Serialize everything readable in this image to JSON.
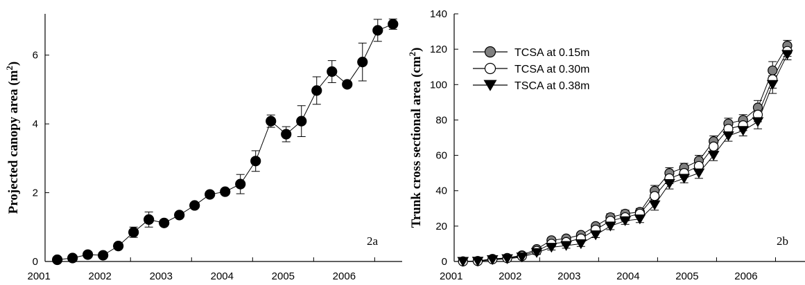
{
  "chart_data": [
    {
      "type": "line",
      "panel_label": "2a",
      "ylabel": "Projected canopy area (m",
      "ylabel_sup": "2",
      "ylabel_close": ")",
      "x_ticks": [
        "2001",
        "2002",
        "2003",
        "2004",
        "2005",
        "2006"
      ],
      "ylim": [
        0,
        7.2
      ],
      "y_ticks": [
        "0",
        "2",
        "4",
        "6"
      ],
      "grid": false,
      "series": [
        {
          "color": "#000000",
          "marker": "circle-filled",
          "points": [
            {
              "x": 2000.8,
              "y": 0.05,
              "err": 0
            },
            {
              "x": 2001.05,
              "y": 0.1,
              "err": 0
            },
            {
              "x": 2001.3,
              "y": 0.2,
              "err": 0
            },
            {
              "x": 2001.55,
              "y": 0.18,
              "err": 0
            },
            {
              "x": 2001.8,
              "y": 0.45,
              "err": 0.05
            },
            {
              "x": 2002.05,
              "y": 0.85,
              "err": 0.15
            },
            {
              "x": 2002.3,
              "y": 1.22,
              "err": 0.22
            },
            {
              "x": 2002.55,
              "y": 1.12,
              "err": 0.05
            },
            {
              "x": 2002.8,
              "y": 1.35,
              "err": 0.05
            },
            {
              "x": 2003.05,
              "y": 1.63,
              "err": 0.05
            },
            {
              "x": 2003.3,
              "y": 1.95,
              "err": 0.05
            },
            {
              "x": 2003.55,
              "y": 2.03,
              "err": 0.05
            },
            {
              "x": 2003.8,
              "y": 2.25,
              "err": 0.28
            },
            {
              "x": 2004.05,
              "y": 2.92,
              "err": 0.3
            },
            {
              "x": 2004.3,
              "y": 4.08,
              "err": 0.18
            },
            {
              "x": 2004.55,
              "y": 3.7,
              "err": 0.22
            },
            {
              "x": 2004.8,
              "y": 4.08,
              "err": 0.45
            },
            {
              "x": 2005.05,
              "y": 4.97,
              "err": 0.4
            },
            {
              "x": 2005.3,
              "y": 5.52,
              "err": 0.32
            },
            {
              "x": 2005.55,
              "y": 5.15,
              "err": 0.08
            },
            {
              "x": 2005.8,
              "y": 5.8,
              "err": 0.55
            },
            {
              "x": 2006.05,
              "y": 6.72,
              "err": 0.32
            },
            {
              "x": 2006.3,
              "y": 6.9,
              "err": 0.15
            }
          ]
        }
      ]
    },
    {
      "type": "line",
      "panel_label": "2b",
      "ylabel": "Trunk cross sectional area (cm",
      "ylabel_sup": "2",
      "ylabel_close": ")",
      "x_ticks": [
        "2001",
        "2002",
        "2003",
        "2004",
        "2005",
        "2006"
      ],
      "ylim": [
        0,
        140
      ],
      "y_ticks": [
        "0",
        "20",
        "40",
        "60",
        "80",
        "100",
        "120",
        "140"
      ],
      "grid": false,
      "legend_position": "top-left",
      "x": [
        2000.7,
        2000.95,
        2001.2,
        2001.45,
        2001.7,
        2001.95,
        2002.2,
        2002.45,
        2002.7,
        2002.95,
        2003.2,
        2003.45,
        2003.7,
        2003.95,
        2004.2,
        2004.45,
        2004.7,
        2004.95,
        2005.2,
        2005.45,
        2005.7,
        2005.95,
        2006.2
      ],
      "series": [
        {
          "name": "TCSA at 0.15m",
          "color": "#808080",
          "marker": "circle-gray",
          "values": [
            0.1,
            0.3,
            1.5,
            2,
            3.5,
            7,
            12,
            13,
            15,
            20,
            25,
            27,
            28,
            40,
            50,
            53,
            57,
            68,
            78,
            80,
            87,
            108,
            122
          ],
          "errors": [
            0,
            0,
            0,
            0,
            0.5,
            1,
            1.5,
            1.5,
            1.5,
            1.5,
            2,
            2,
            2,
            3,
            3,
            2.5,
            3,
            3,
            3,
            3,
            4,
            5,
            3
          ]
        },
        {
          "name": "TCSA at 0.30m",
          "color": "#ffffff",
          "marker": "circle-open",
          "values": [
            0,
            0.2,
            1.2,
            1.8,
            3,
            6,
            10,
            11,
            13,
            18,
            23,
            25,
            27,
            37,
            47,
            50,
            54,
            65,
            75,
            77,
            83,
            103,
            119
          ],
          "errors": [
            0,
            0,
            0,
            0,
            0.5,
            1,
            1.5,
            1.5,
            1.5,
            1.5,
            2,
            2,
            2,
            3,
            3,
            2.5,
            3,
            3,
            3,
            3,
            4,
            5,
            3
          ]
        },
        {
          "name": "TSCA at 0.38m",
          "color": "#000000",
          "marker": "triangle-down",
          "values": [
            0,
            0.1,
            1,
            1.5,
            2.5,
            5,
            8,
            9,
            10,
            15,
            20,
            23,
            24,
            32,
            44,
            47,
            50,
            60,
            71,
            74,
            79,
            100,
            117
          ],
          "errors": [
            0,
            0,
            0,
            0,
            0.5,
            1,
            1.5,
            1.5,
            1.5,
            1.5,
            2,
            2,
            2,
            3,
            3,
            2.5,
            3,
            3,
            3,
            3,
            4,
            5,
            3
          ]
        }
      ]
    }
  ]
}
